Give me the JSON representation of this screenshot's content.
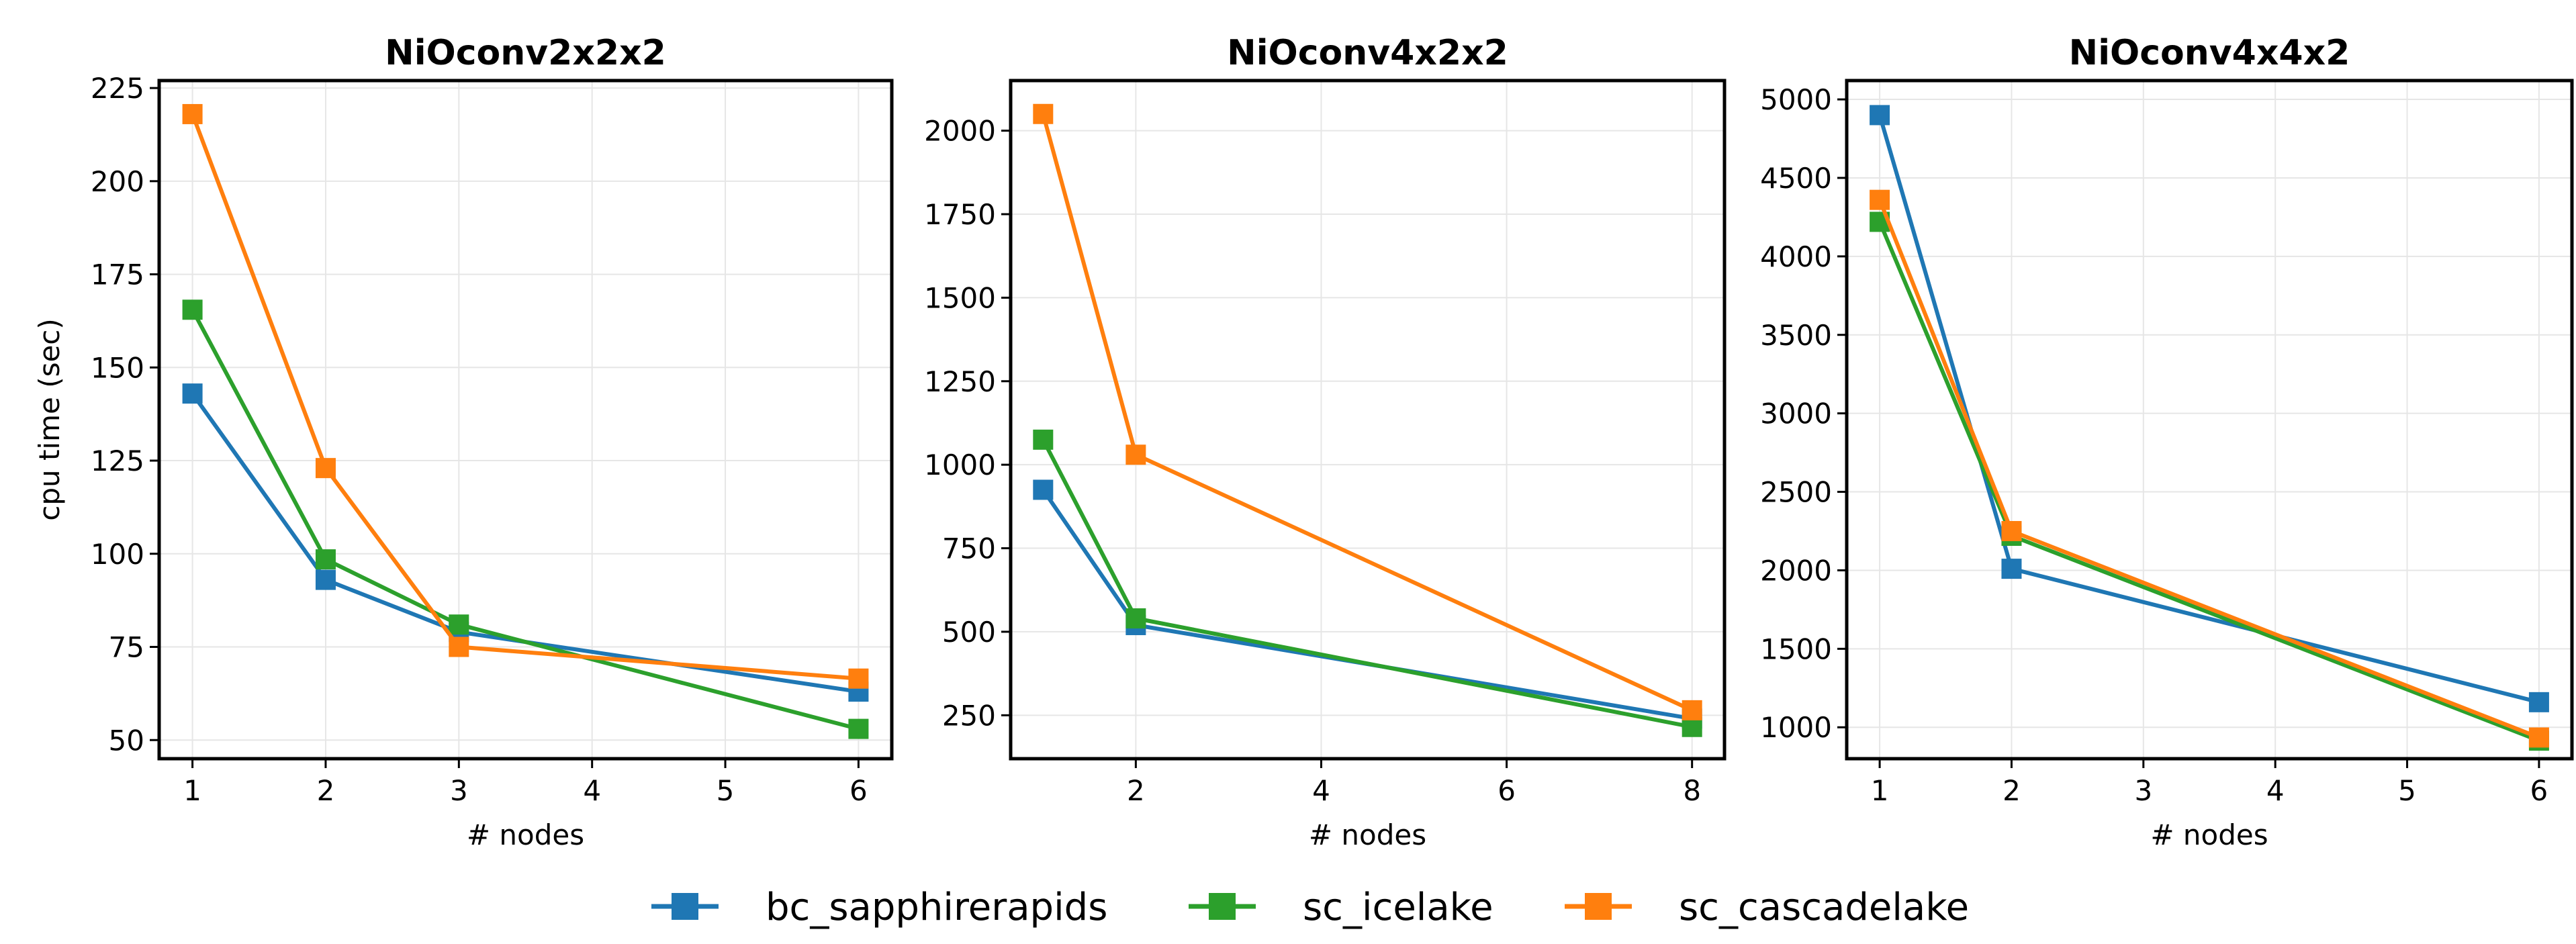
{
  "chart_data": [
    {
      "type": "line",
      "title": "NiOconv2x2x2",
      "xlabel": "# nodes",
      "ylabel": "cpu time (sec)",
      "xlim": [
        0.75,
        6.25
      ],
      "ylim": [
        45,
        227
      ],
      "xticks": [
        1,
        2,
        3,
        4,
        5,
        6
      ],
      "yticks": [
        50,
        75,
        100,
        125,
        150,
        175,
        200,
        225
      ],
      "grid": true,
      "x": [
        1,
        2,
        3,
        6
      ],
      "series": [
        {
          "name": "bc_sapphirerapids",
          "color": "#1f77b4",
          "values": [
            143,
            93,
            79,
            63
          ]
        },
        {
          "name": "sc_icelake",
          "color": "#2ca02c",
          "values": [
            165.5,
            98.5,
            81,
            53
          ]
        },
        {
          "name": "sc_cascadelake",
          "color": "#ff7f0e",
          "values": [
            218,
            123,
            75,
            66.5
          ]
        }
      ]
    },
    {
      "type": "line",
      "title": "NiOconv4x2x2",
      "xlabel": "# nodes",
      "ylabel": "",
      "xlim": [
        0.65,
        8.35
      ],
      "ylim": [
        120,
        2150
      ],
      "xticks": [
        2,
        4,
        6,
        8
      ],
      "yticks": [
        250,
        500,
        750,
        1000,
        1250,
        1500,
        1750,
        2000
      ],
      "grid": true,
      "x": [
        1,
        2,
        8
      ],
      "series": [
        {
          "name": "bc_sapphirerapids",
          "color": "#1f77b4",
          "values": [
            925,
            520,
            240
          ]
        },
        {
          "name": "sc_icelake",
          "color": "#2ca02c",
          "values": [
            1075,
            540,
            215
          ]
        },
        {
          "name": "sc_cascadelake",
          "color": "#ff7f0e",
          "values": [
            2050,
            1030,
            265
          ]
        }
      ]
    },
    {
      "type": "line",
      "title": "NiOconv4x4x2",
      "xlabel": "# nodes",
      "ylabel": "",
      "xlim": [
        0.75,
        6.25
      ],
      "ylim": [
        800,
        5120
      ],
      "xticks": [
        1,
        2,
        3,
        4,
        5,
        6
      ],
      "yticks": [
        1000,
        1500,
        2000,
        2500,
        3000,
        3500,
        4000,
        4500,
        5000
      ],
      "grid": true,
      "x": [
        1,
        2,
        6
      ],
      "series": [
        {
          "name": "bc_sapphirerapids",
          "color": "#1f77b4",
          "values": [
            4900,
            2010,
            1160
          ]
        },
        {
          "name": "sc_icelake",
          "color": "#2ca02c",
          "values": [
            4220,
            2220,
            915
          ]
        },
        {
          "name": "sc_cascadelake",
          "color": "#ff7f0e",
          "values": [
            4360,
            2250,
            935
          ]
        }
      ]
    }
  ],
  "legend": {
    "placement": "bottom-center",
    "entries": [
      {
        "name": "bc_sapphirerapids",
        "color": "#1f77b4"
      },
      {
        "name": "sc_icelake",
        "color": "#2ca02c"
      },
      {
        "name": "sc_cascadelake",
        "color": "#ff7f0e"
      }
    ]
  }
}
